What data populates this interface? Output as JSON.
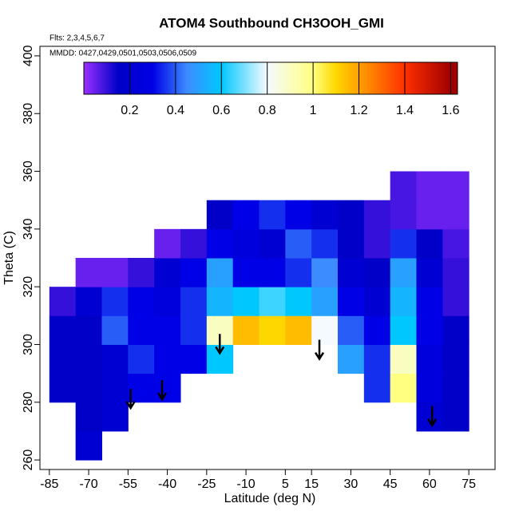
{
  "chart_data": {
    "type": "heatmap",
    "title": "ATOM4 Southbound CH3OOH_GMI",
    "annotations": [
      "Flts: 2,3,4,5,6,7",
      "MMDD: 0427,0429,0501,0503,0506,0509"
    ],
    "xlabel": "Latitude (deg N)",
    "ylabel": "Theta (C)",
    "xlim": [
      -88.6,
      85
    ],
    "ylim": [
      256.7,
      403.3
    ],
    "xticks": [
      -85,
      -70,
      -55,
      -40,
      -25,
      -10,
      5,
      15,
      30,
      45,
      60,
      75
    ],
    "yticks": [
      260,
      280,
      300,
      320,
      340,
      360,
      380,
      400
    ],
    "x": [
      -80,
      -70,
      -60,
      -50,
      -40,
      -30,
      -20,
      -10,
      0,
      10,
      20,
      30,
      40,
      50,
      60,
      70
    ],
    "y": [
      265,
      275,
      285,
      295,
      305,
      315,
      325,
      335,
      345,
      355
    ],
    "z": [
      [
        null,
        0.2,
        null,
        null,
        null,
        null,
        null,
        null,
        null,
        null,
        null,
        null,
        null,
        null,
        null,
        null
      ],
      [
        null,
        0.15,
        0.2,
        null,
        null,
        null,
        null,
        null,
        null,
        null,
        null,
        null,
        null,
        null,
        0.2,
        0.15
      ],
      [
        0.15,
        0.15,
        0.2,
        0.3,
        0.3,
        null,
        null,
        null,
        null,
        null,
        null,
        null,
        0.35,
        1.0,
        0.25,
        0.15
      ],
      [
        0.15,
        0.15,
        0.2,
        0.35,
        0.3,
        0.3,
        0.6,
        null,
        null,
        null,
        null,
        0.5,
        0.35,
        0.9,
        0.25,
        0.15
      ],
      [
        0.15,
        0.15,
        0.4,
        0.3,
        0.3,
        0.35,
        0.9,
        1.15,
        1.1,
        1.15,
        0.8,
        0.4,
        0.3,
        0.6,
        0.3,
        0.15
      ],
      [
        0.1,
        0.2,
        0.35,
        0.3,
        0.25,
        0.35,
        0.55,
        0.6,
        0.65,
        0.6,
        0.5,
        0.3,
        0.2,
        0.55,
        0.3,
        0.1
      ],
      [
        null,
        0.05,
        0.05,
        0.1,
        0.2,
        0.3,
        0.5,
        0.3,
        0.3,
        0.35,
        0.45,
        0.2,
        0.15,
        0.5,
        0.2,
        0.1
      ],
      [
        null,
        null,
        null,
        null,
        0.05,
        0.1,
        0.3,
        0.25,
        0.2,
        0.4,
        0.35,
        0.15,
        0.1,
        0.35,
        0.15,
        0.08
      ],
      [
        null,
        null,
        null,
        null,
        null,
        null,
        0.15,
        0.3,
        0.35,
        0.3,
        0.2,
        0.15,
        0.1,
        0.08,
        0.05,
        0.05
      ],
      [
        null,
        null,
        null,
        null,
        null,
        null,
        null,
        null,
        null,
        null,
        null,
        null,
        null,
        0.08,
        0.05,
        0.05
      ]
    ],
    "clim": [
      0,
      1.63
    ],
    "cticks": [
      0.2,
      0.4,
      0.6,
      0.8,
      1.0,
      1.2,
      1.4,
      1.6
    ],
    "colormap": [
      {
        "value": 0,
        "color": "#9b30ff"
      },
      {
        "value": 0.15,
        "color": "#0000c8"
      },
      {
        "value": 0.3,
        "color": "#0000e6"
      },
      {
        "value": 0.45,
        "color": "#3c8cff"
      },
      {
        "value": 0.6,
        "color": "#00c8ff"
      },
      {
        "value": 0.8,
        "color": "#f5faff"
      },
      {
        "value": 1.0,
        "color": "#ffff80"
      },
      {
        "value": 1.1,
        "color": "#ffd700"
      },
      {
        "value": 1.2,
        "color": "#ffa000"
      },
      {
        "value": 1.4,
        "color": "#ff3000"
      },
      {
        "value": 1.6,
        "color": "#a00000"
      }
    ],
    "arrows": {
      "x": [
        -54,
        -42,
        -20,
        18,
        61
      ],
      "y": [
        278,
        281,
        297,
        295,
        272
      ]
    }
  }
}
